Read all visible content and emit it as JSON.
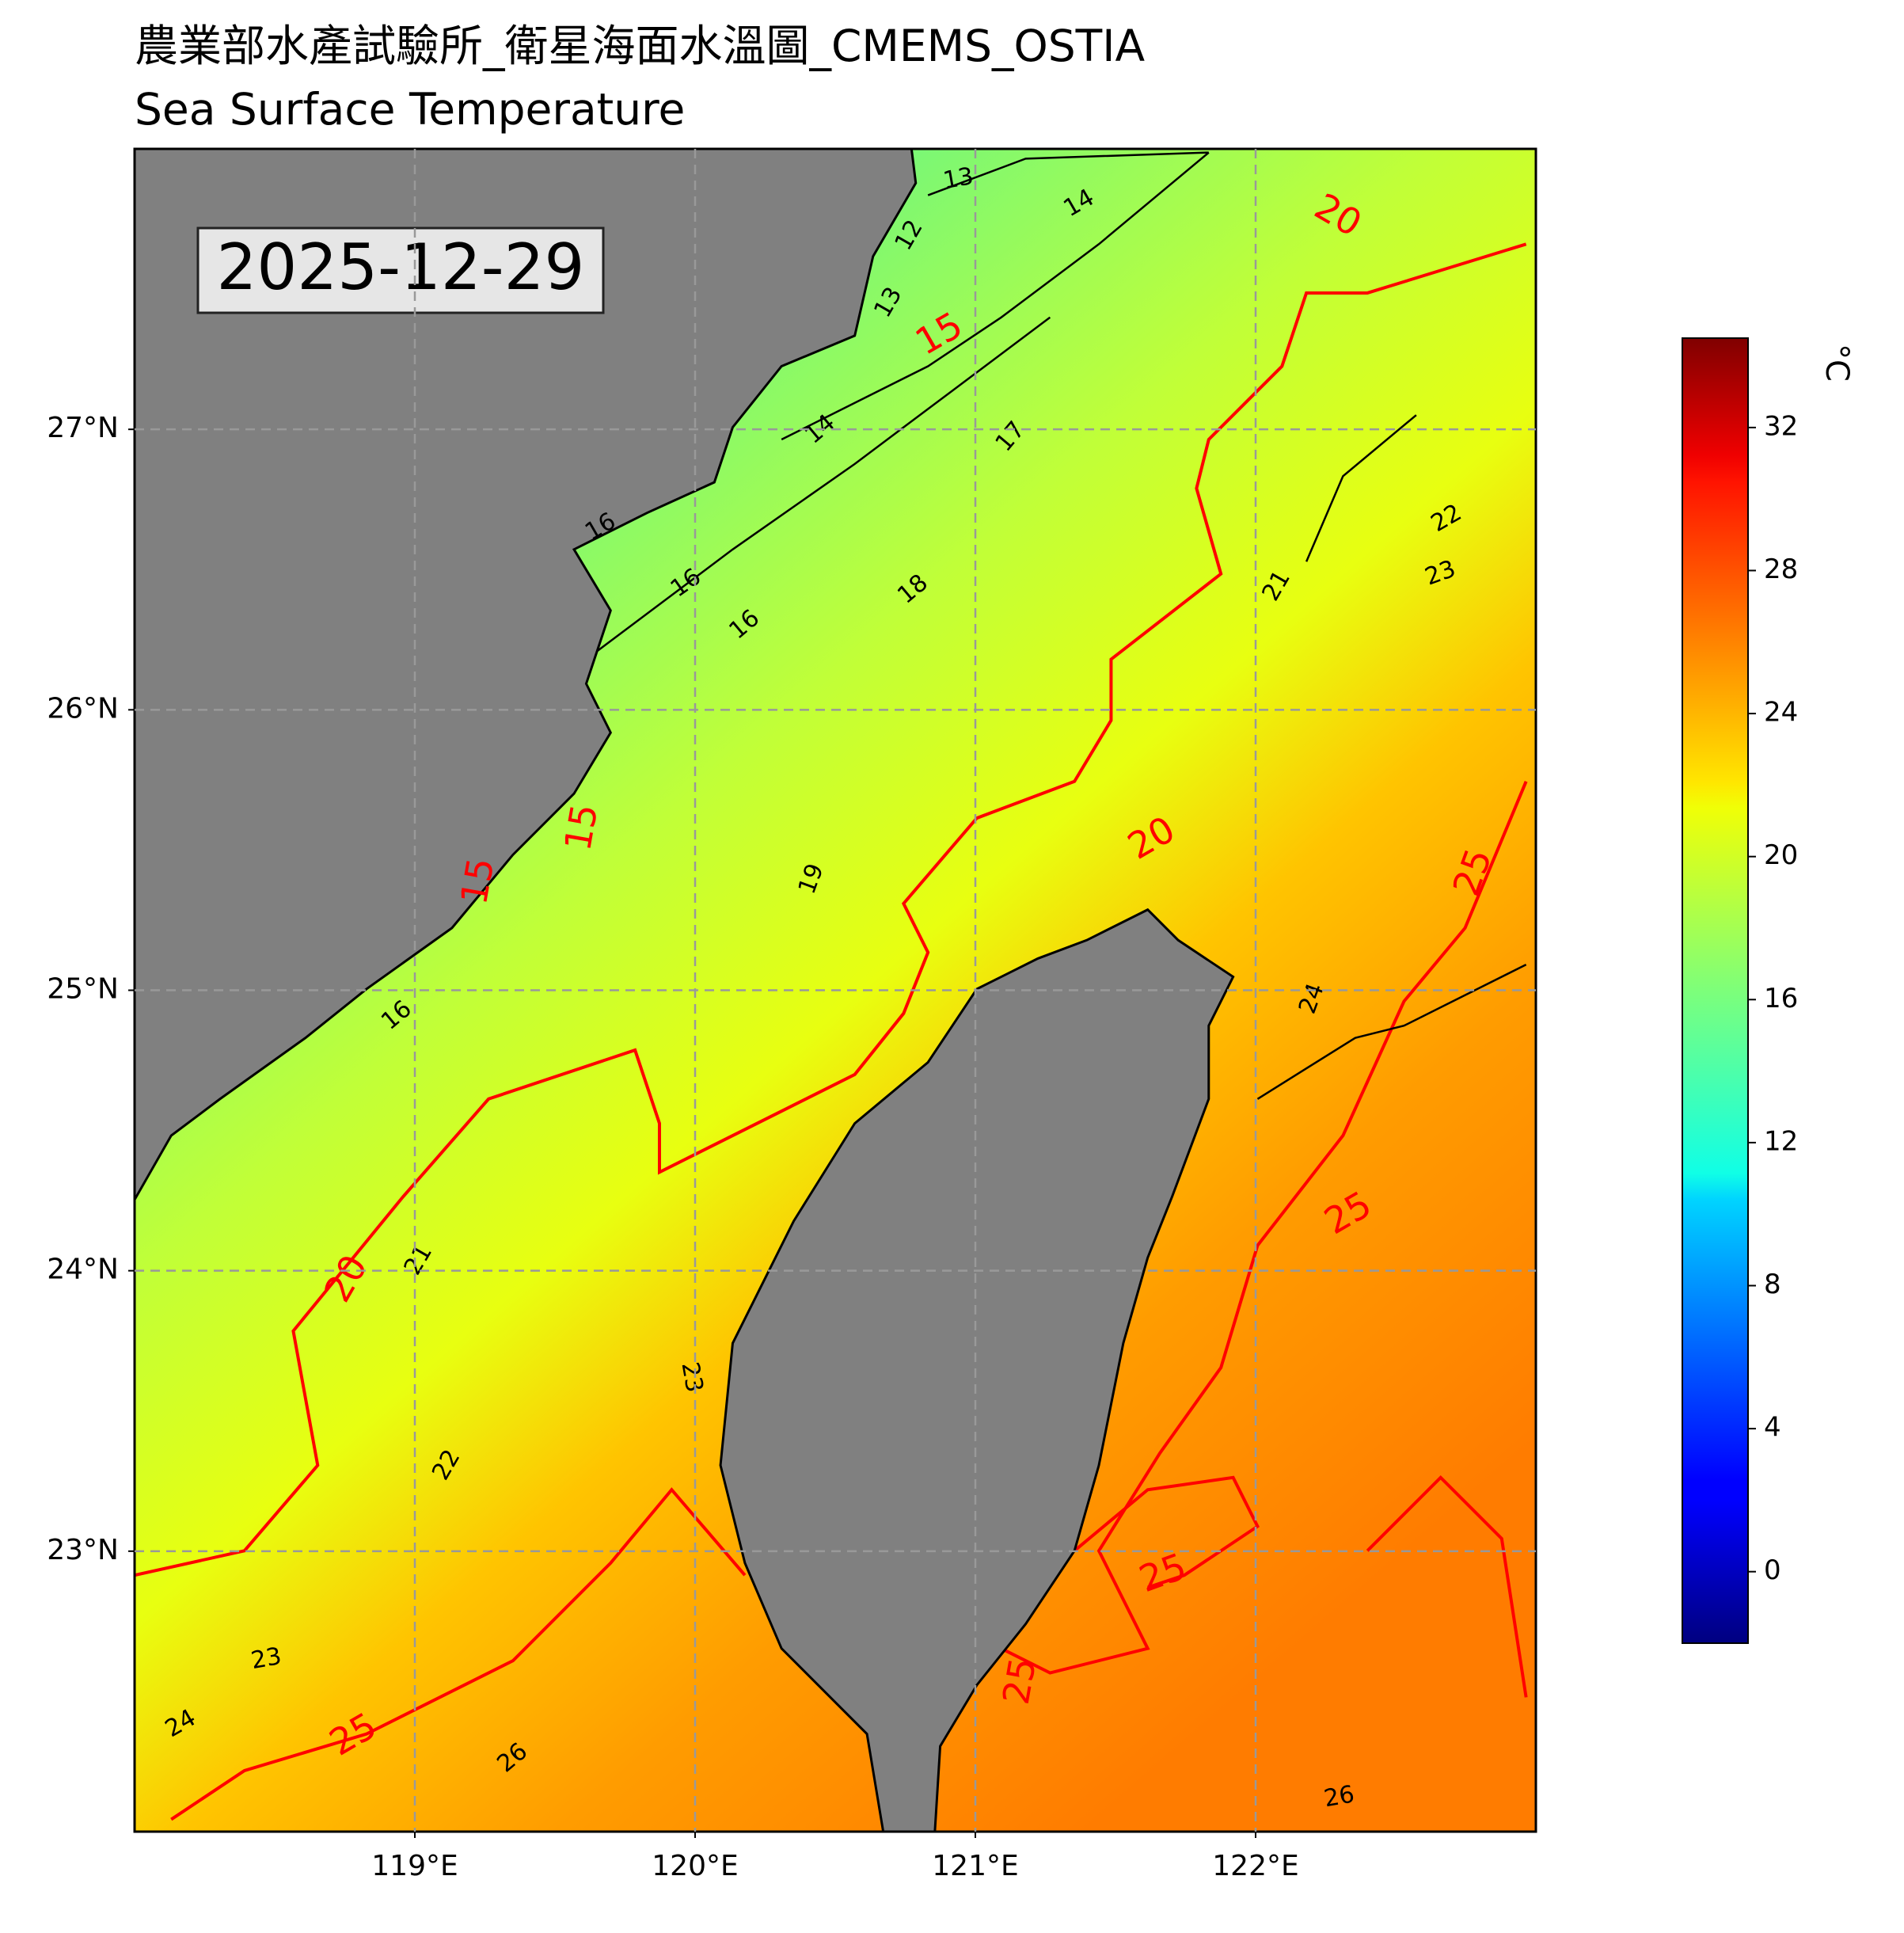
{
  "chart_data": {
    "type": "map",
    "title": "農業部水產試驗所_衛星海面水溫圖_CMEMS_OSTIA",
    "subtitle": "Sea Surface Temperature",
    "date_label": "2025-12-29",
    "xlim": [
      118,
      123
    ],
    "ylim": [
      22,
      28
    ],
    "xticks": [
      {
        "value": 119,
        "label": "119°E"
      },
      {
        "value": 120,
        "label": "120°E"
      },
      {
        "value": 121,
        "label": "121°E"
      },
      {
        "value": 122,
        "label": "122°E"
      }
    ],
    "yticks": [
      {
        "value": 23,
        "label": "23°N"
      },
      {
        "value": 24,
        "label": "24°N"
      },
      {
        "value": 25,
        "label": "25°N"
      },
      {
        "value": 26,
        "label": "26°N"
      },
      {
        "value": 27,
        "label": "27°N"
      }
    ],
    "grid": true,
    "colorbar": {
      "label": "°C",
      "colormap": "jet",
      "lim": [
        -2,
        34.5
      ],
      "ticks": [
        0,
        4,
        8,
        12,
        16,
        20,
        24,
        28,
        32
      ]
    },
    "contour_labels": [
      13,
      14,
      12,
      13,
      20,
      15,
      14,
      17,
      16,
      22,
      16,
      21,
      23,
      18,
      16,
      20,
      15,
      15,
      19,
      25,
      24,
      16,
      25,
      20,
      21,
      23,
      22,
      25,
      23,
      25,
      24,
      25,
      26,
      26
    ]
  }
}
